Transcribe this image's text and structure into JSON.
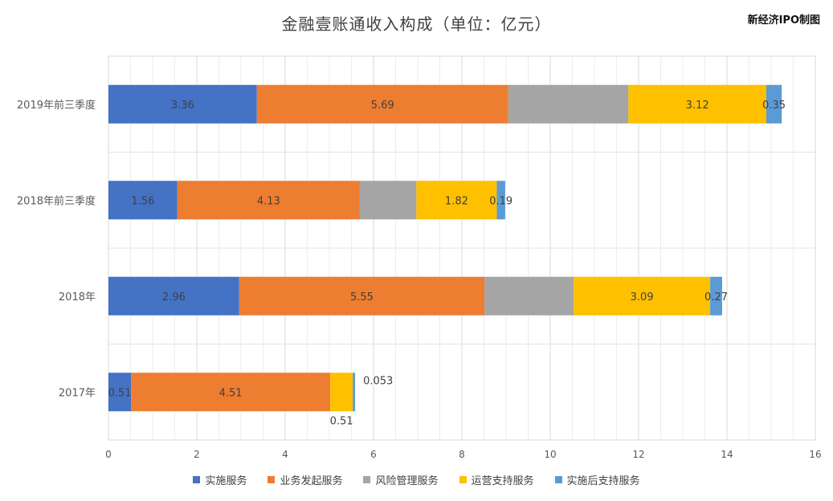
{
  "chart_data": {
    "type": "bar",
    "orientation": "horizontal",
    "stacked": true,
    "title": "金融壹账通收入构成（单位：亿元）",
    "watermark": "新经济IPO制图",
    "categories": [
      "2019年前三季度",
      "2018年前三季度",
      "2018年",
      "2017年"
    ],
    "series": [
      {
        "name": "实施服务",
        "color": "#4472C4",
        "values": [
          3.36,
          1.56,
          2.96,
          0.51
        ],
        "labels": [
          "3.36",
          "1.56",
          "2.96",
          "0.51"
        ]
      },
      {
        "name": "业务发起服务",
        "color": "#ED7D31",
        "values": [
          5.69,
          4.13,
          5.55,
          4.51
        ],
        "labels": [
          "5.69",
          "4.13",
          "5.55",
          "4.51"
        ]
      },
      {
        "name": "风险管理服务",
        "color": "#A5A5A5",
        "values": [
          2.72,
          1.28,
          2.02,
          0
        ],
        "labels": [
          "",
          "",
          "",
          ""
        ]
      },
      {
        "name": "运营支持服务",
        "color": "#FFC000",
        "values": [
          3.12,
          1.82,
          3.09,
          0.51
        ],
        "labels": [
          "3.12",
          "1.82",
          "3.09",
          "0.51"
        ]
      },
      {
        "name": "实施后支持服务",
        "color": "#5B9BD5",
        "values": [
          0.35,
          0.19,
          0.27,
          0.053
        ],
        "labels": [
          "0.35",
          "0.19",
          "0.27",
          "0.053"
        ]
      }
    ],
    "xlim": [
      0,
      16
    ],
    "xticks": [
      0,
      2,
      4,
      6,
      8,
      10,
      12,
      14,
      16
    ],
    "grid": true,
    "legend_position": "bottom"
  }
}
